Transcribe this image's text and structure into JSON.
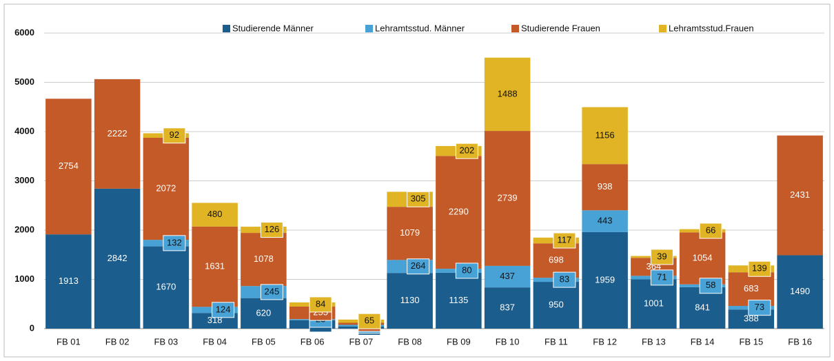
{
  "chart_data": {
    "type": "stacked_bar",
    "categories": [
      "FB 01",
      "FB 02",
      "FB 03",
      "FB 04",
      "FB 05",
      "FB 06",
      "FB 07",
      "FB 08",
      "FB 09",
      "FB 10",
      "FB 11",
      "FB 12",
      "FB 13",
      "FB 14",
      "FB 15",
      "FB 16"
    ],
    "series": [
      {
        "name": "Studierende Männer",
        "color": "#1b5d8c",
        "values": [
          1913,
          2842,
          1670,
          318,
          620,
          170,
          43,
          1130,
          1135,
          837,
          950,
          1959,
          1001,
          841,
          388,
          1490
        ]
      },
      {
        "name": "Lehramtsstud. Männer",
        "color": "#48a2d6",
        "values": [
          null,
          null,
          132,
          124,
          245,
          23,
          34,
          264,
          80,
          437,
          83,
          443,
          71,
          58,
          73,
          null
        ]
      },
      {
        "name": "Studierende Frauen",
        "color": "#c35a27",
        "values": [
          2754,
          2222,
          2072,
          1631,
          1078,
          255,
          42,
          1079,
          2290,
          2739,
          698,
          938,
          364,
          1054,
          683,
          2431
        ]
      },
      {
        "name": "Lehramtsstud.Frauen",
        "color": "#e0b424",
        "values": [
          null,
          null,
          92,
          480,
          126,
          84,
          65,
          305,
          202,
          1488,
          117,
          1156,
          39,
          66,
          139,
          null
        ]
      }
    ],
    "ylim": [
      0,
      6000
    ],
    "yticks": [
      0,
      1000,
      2000,
      3000,
      4000,
      5000,
      6000
    ],
    "grid": true,
    "legend": "top"
  }
}
